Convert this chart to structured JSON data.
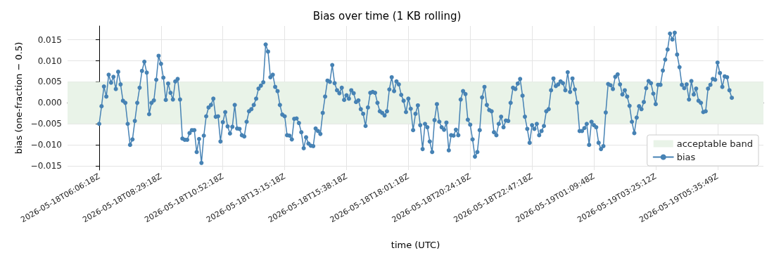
{
  "chart_data": {
    "type": "line",
    "title": "Bias over time (1 KB rolling)",
    "xlabel": "time (UTC)",
    "ylabel": "bias (one-fraction − 0.5)",
    "categories": [
      "2026-05-18T06:06:18Z",
      null,
      null,
      null,
      null,
      null,
      null,
      null,
      null,
      null,
      null,
      null,
      null,
      null,
      null,
      null,
      null,
      null,
      null,
      null,
      null,
      null,
      null,
      null,
      null,
      null,
      "2026-05-18T08:29:18Z",
      null,
      null,
      null,
      null,
      null,
      null,
      null,
      null,
      null,
      null,
      null,
      null,
      null,
      null,
      null,
      null,
      null,
      null,
      null,
      null,
      null,
      null,
      null,
      null,
      null,
      "2026-05-18T10:52:18Z",
      null,
      null,
      null,
      null,
      null,
      null,
      null,
      null,
      null,
      null,
      null,
      null,
      null,
      null,
      null,
      null,
      null,
      null,
      null,
      null,
      null,
      null,
      null,
      null,
      null,
      "2026-05-18T13:15:18Z",
      null,
      null,
      null,
      null,
      null,
      null,
      null,
      null,
      null,
      null,
      null,
      null,
      null,
      null,
      null,
      null,
      null,
      null,
      null,
      null,
      null,
      null,
      null,
      null,
      null,
      "2026-05-18T15:38:18Z",
      null,
      null,
      null,
      null,
      null,
      null,
      null,
      null,
      null,
      null,
      null,
      null,
      null,
      null,
      null,
      null,
      null,
      null,
      null,
      null,
      null,
      null,
      null,
      null,
      null,
      "2026-05-18T18:01:18Z",
      null,
      null,
      null,
      null,
      null,
      null,
      null,
      null,
      null,
      null,
      null,
      null,
      null,
      null,
      null,
      null,
      null,
      null,
      null,
      null,
      null,
      null,
      null,
      null,
      null,
      "2026-05-18T20:24:18Z",
      null,
      null,
      null,
      null,
      null,
      null,
      null,
      null,
      null,
      null,
      null,
      null,
      null,
      null,
      null,
      null,
      null,
      null,
      null,
      null,
      null,
      null,
      null,
      null,
      null,
      "2026-05-18T22:47:18Z",
      null,
      null,
      null,
      null,
      null,
      null,
      null,
      null,
      null,
      null,
      null,
      null,
      null,
      null,
      null,
      null,
      null,
      null,
      null,
      null,
      null,
      null,
      null,
      null,
      null,
      "2026-05-19T01:09:48Z",
      null,
      null,
      null,
      null,
      null,
      null,
      null,
      null,
      null,
      null,
      null,
      null,
      null,
      null,
      null,
      null,
      null,
      null,
      null,
      null,
      null,
      null,
      null,
      null,
      null,
      "2026-05-19T03:25:12Z",
      null,
      null,
      null,
      null,
      null,
      null,
      null,
      null,
      null,
      null,
      null,
      null,
      null,
      null,
      null,
      null,
      null,
      null,
      null,
      null,
      null,
      null,
      null,
      null,
      null,
      "2026-05-19T05:35:49Z",
      null,
      null,
      null,
      null,
      null,
      null
    ],
    "series": [
      {
        "name": "bias",
        "color": "#4682b4",
        "values": [
          -0.005,
          -0.0008,
          0.0039,
          0.0015,
          0.0067,
          0.0048,
          0.0062,
          0.0033,
          0.0074,
          0.0044,
          0.0005,
          0.0,
          -0.005,
          -0.01,
          -0.0087,
          -0.0043,
          0.0,
          0.0036,
          0.0076,
          0.0098,
          0.0072,
          -0.0027,
          0.0,
          0.0006,
          0.0055,
          0.0112,
          0.0093,
          0.006,
          0.0007,
          0.0046,
          0.0024,
          0.0008,
          0.0051,
          0.0057,
          0.0008,
          -0.0085,
          -0.0088,
          -0.0088,
          -0.0072,
          -0.0065,
          -0.0065,
          -0.0117,
          -0.0086,
          -0.0143,
          -0.0078,
          -0.0032,
          -0.0011,
          -0.0005,
          0.001,
          -0.0033,
          -0.0032,
          -0.0092,
          -0.0046,
          -0.0022,
          -0.0056,
          -0.0073,
          -0.0057,
          -0.0005,
          -0.0061,
          -0.0062,
          -0.0077,
          -0.008,
          -0.0045,
          -0.002,
          -0.0015,
          -0.0005,
          0.001,
          0.0034,
          0.0041,
          0.0049,
          0.0139,
          0.0122,
          0.0061,
          0.0067,
          0.0038,
          0.0028,
          -0.0005,
          -0.0028,
          -0.0032,
          -0.0077,
          -0.0078,
          -0.0087,
          -0.0038,
          -0.0037,
          -0.0048,
          -0.007,
          -0.0108,
          -0.0082,
          -0.0097,
          -0.0102,
          -0.0103,
          -0.0061,
          -0.0067,
          -0.0074,
          -0.0024,
          0.0015,
          0.0053,
          0.005,
          0.009,
          0.0047,
          0.003,
          0.0023,
          0.0036,
          0.0007,
          0.0018,
          0.001,
          0.003,
          0.0023,
          0.0002,
          0.0006,
          -0.0015,
          -0.0026,
          -0.0055,
          -0.0011,
          0.0024,
          0.0026,
          0.0024,
          0.0,
          -0.002,
          -0.0024,
          -0.003,
          -0.002,
          0.0032,
          0.0061,
          0.0028,
          0.0051,
          0.0044,
          0.0019,
          0.0005,
          -0.0022,
          0.001,
          -0.0014,
          -0.0065,
          -0.0026,
          -0.0006,
          -0.0053,
          -0.011,
          -0.005,
          -0.0058,
          -0.0092,
          -0.0117,
          -0.0041,
          -0.0003,
          -0.0045,
          -0.0058,
          -0.0064,
          -0.0047,
          -0.0113,
          -0.0077,
          -0.0078,
          -0.0064,
          -0.0077,
          0.0008,
          0.0028,
          0.0021,
          -0.004,
          -0.0052,
          -0.0087,
          -0.0128,
          -0.0117,
          -0.0065,
          0.0013,
          0.0038,
          -0.0005,
          -0.0017,
          -0.002,
          -0.007,
          -0.0077,
          -0.005,
          -0.0033,
          -0.0058,
          -0.0042,
          -0.0043,
          0.0,
          0.0036,
          0.0033,
          0.0046,
          0.0057,
          0.0017,
          -0.0033,
          -0.0062,
          -0.0095,
          -0.0053,
          -0.0062,
          -0.005,
          -0.0077,
          -0.0067,
          -0.0055,
          -0.002,
          -0.0015,
          0.003,
          0.0058,
          0.004,
          0.0044,
          0.0051,
          0.0047,
          0.003,
          0.0073,
          0.0026,
          0.0058,
          0.0032,
          0.0,
          -0.0067,
          -0.0067,
          -0.006,
          -0.005,
          -0.01,
          -0.0045,
          -0.0053,
          -0.0058,
          -0.0095,
          -0.011,
          -0.0103,
          -0.0023,
          0.0045,
          0.0042,
          0.0033,
          0.0062,
          0.0068,
          0.0044,
          0.002,
          0.003,
          0.0015,
          -0.0007,
          -0.0045,
          -0.0072,
          -0.0035,
          -0.0008,
          -0.0015,
          0.0002,
          0.0035,
          0.0052,
          0.0047,
          0.0022,
          -0.0003,
          0.0043,
          0.0043,
          0.0077,
          0.0103,
          0.0127,
          0.0165,
          0.0151,
          0.0167,
          0.0115,
          0.0085,
          0.0043,
          0.0035,
          0.0044,
          0.0008,
          0.0052,
          0.002,
          0.0034,
          0.0005,
          0.0,
          -0.0022,
          -0.002,
          0.0034,
          0.0043,
          0.0057,
          0.0055,
          0.0096,
          0.0071,
          0.0038,
          0.0063,
          0.0061,
          0.003,
          0.0012
        ]
      }
    ],
    "bands": [
      {
        "axis": "y",
        "from": -0.005,
        "to": 0.005,
        "label": "acceptable band",
        "color": "#e9f3e8"
      }
    ],
    "ylim": [
      -0.016,
      0.0183
    ],
    "yticks": [
      {
        "value": -0.015,
        "label": "−0.015"
      },
      {
        "value": -0.01,
        "label": "−0.010"
      },
      {
        "value": -0.005,
        "label": "−0.005"
      },
      {
        "value": 0,
        "label": "0.000"
      },
      {
        "value": 0.005,
        "label": "0.005"
      },
      {
        "value": 0.01,
        "label": "0.010"
      },
      {
        "value": 0.015,
        "label": "0.015"
      }
    ],
    "grid": true,
    "legend": "bottom right",
    "marker": "circle",
    "line_style": "solid"
  }
}
